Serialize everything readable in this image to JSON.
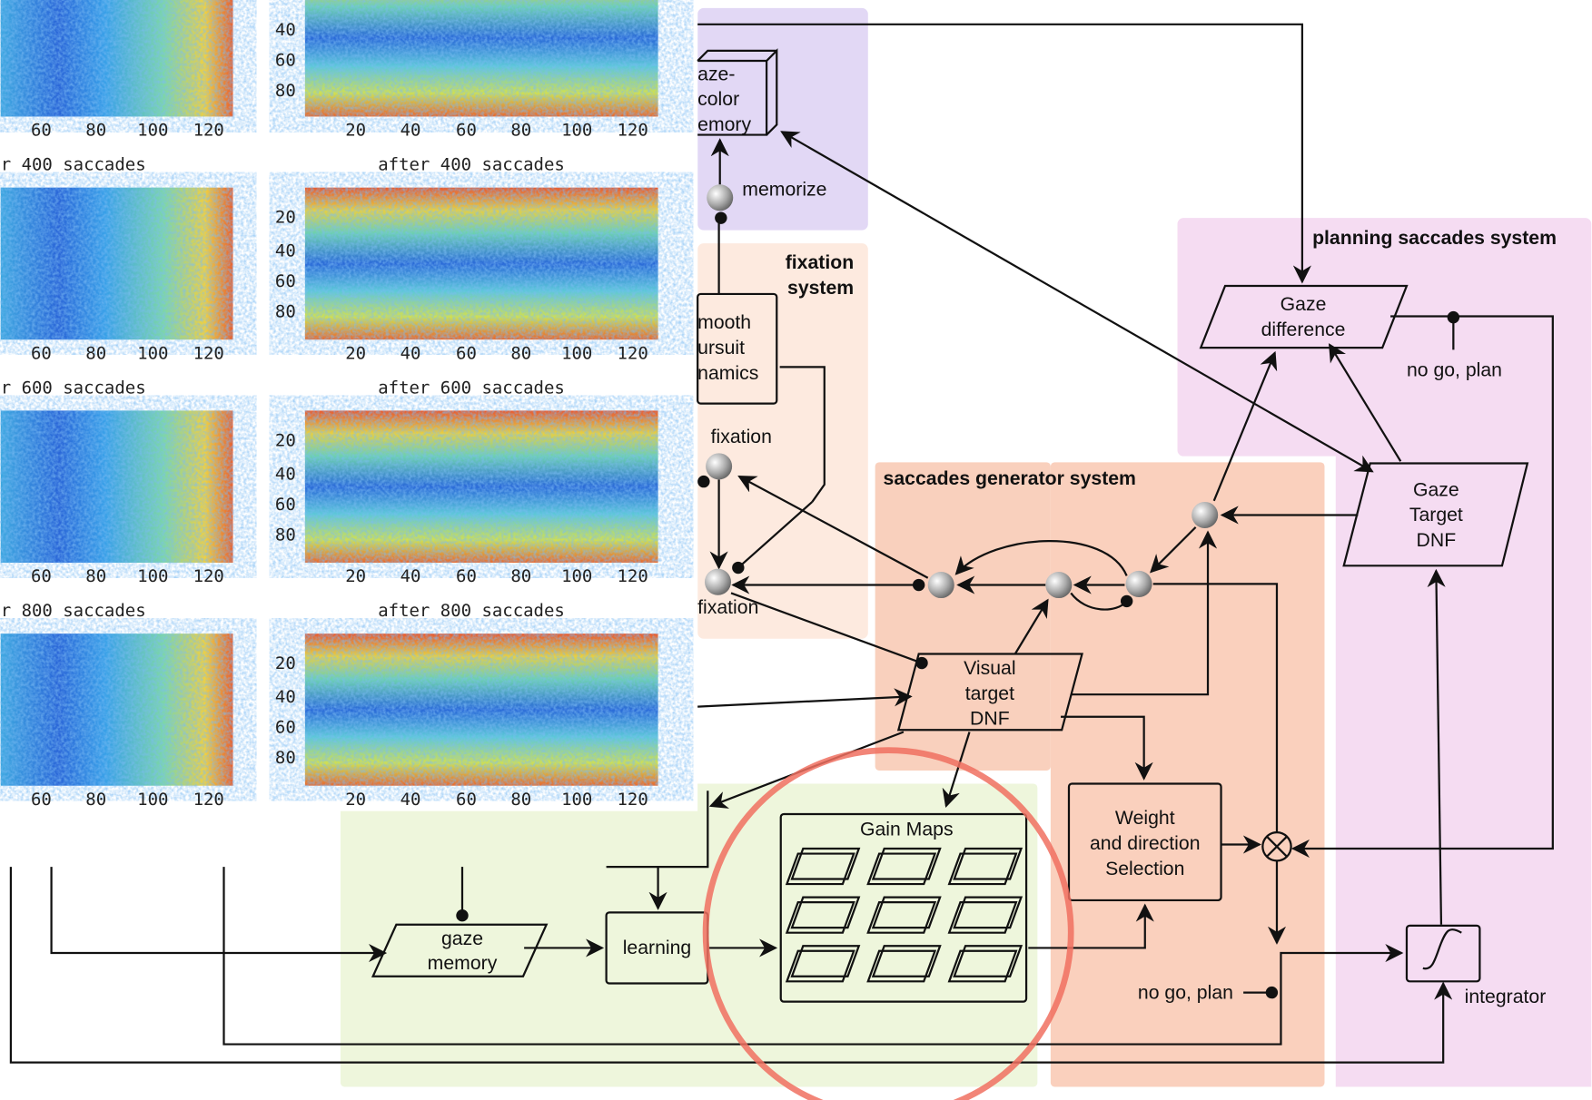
{
  "heatmaps": {
    "titles": [
      "r 400 saccades",
      "after 400 saccades",
      "r 600 saccades",
      "after 600 saccades",
      "r 800 saccades",
      "after 800 saccades"
    ],
    "left_x_ticks": [
      "60",
      "80",
      "100",
      "120"
    ],
    "right_x_ticks": [
      "20",
      "40",
      "60",
      "80",
      "100",
      "120"
    ],
    "y_ticks": [
      "20",
      "40",
      "60",
      "80"
    ]
  },
  "regions": {
    "fixation": [
      "fixation",
      "system"
    ],
    "saccades": "saccades generator system",
    "planning": "planning saccades system"
  },
  "nodes": {
    "memory": [
      "aze-",
      "color",
      "emory"
    ],
    "memorize": "memorize",
    "pursuit": [
      "mooth",
      "ursuit",
      "namics"
    ],
    "fixation_top": "fixation",
    "fixation_bottom": "fixation",
    "gaze_difference": [
      "Gaze",
      "difference"
    ],
    "no_go_top": "no go, plan",
    "gaze_target": [
      "Gaze",
      "Target",
      "DNF"
    ],
    "visual_target": [
      "Visual",
      "target",
      "DNF"
    ],
    "gain_maps": "Gain Maps",
    "weight": [
      "Weight",
      "and direction",
      "Selection"
    ],
    "gaze_memory": [
      "gaze",
      "memory"
    ],
    "learning": "learning",
    "no_go_bottom": "no go, plan",
    "integrator": "integrator"
  }
}
